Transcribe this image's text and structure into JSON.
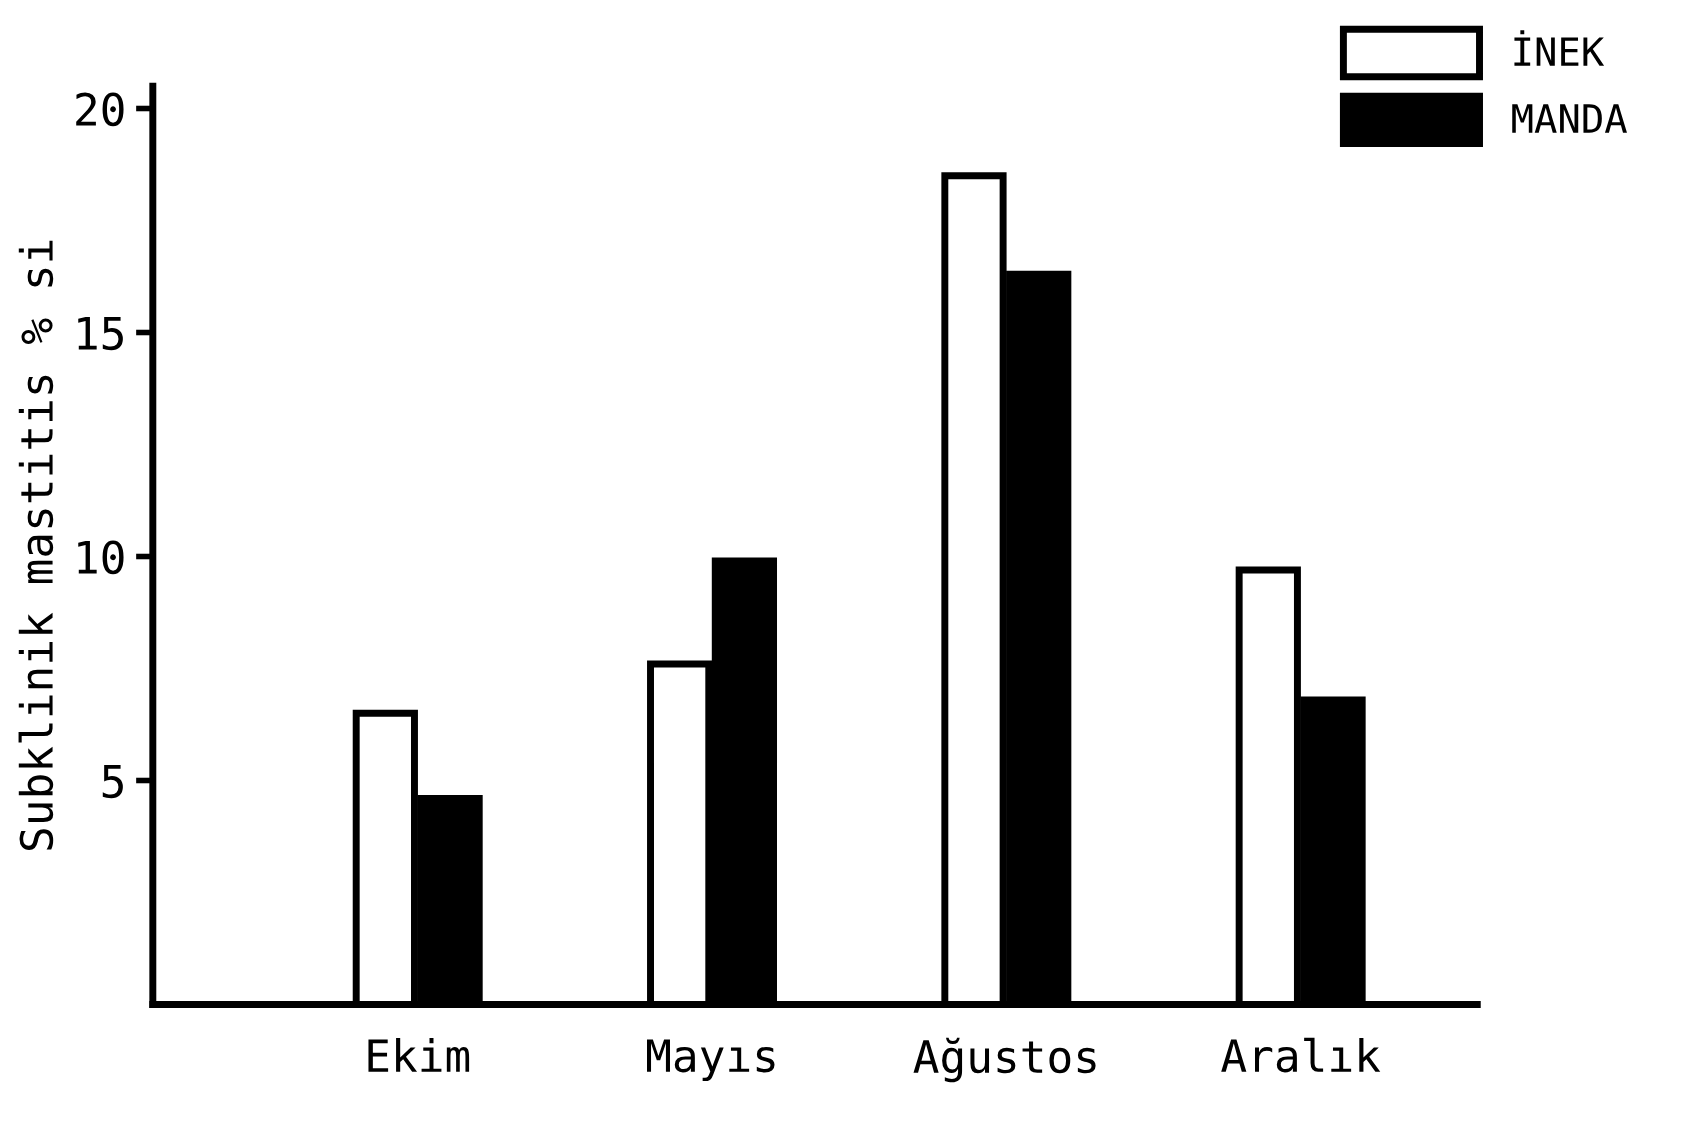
{
  "chart_data": {
    "type": "bar",
    "ylabel": "Subklinik mastitis % si",
    "categories": [
      "Ekim",
      "Mayıs",
      "Ağustos",
      "Aralık"
    ],
    "series": [
      {
        "name": "İNEK",
        "color": "#ffffff",
        "values": [
          6.5,
          7.6,
          18.5,
          9.7
        ]
      },
      {
        "name": "MANDA",
        "color": "#000000",
        "values": [
          4.6,
          9.9,
          16.3,
          6.8
        ]
      }
    ],
    "ylim": [
      0,
      20.5
    ],
    "yticks": [
      5,
      10,
      15,
      20
    ],
    "grid": false,
    "legend": "top right"
  }
}
